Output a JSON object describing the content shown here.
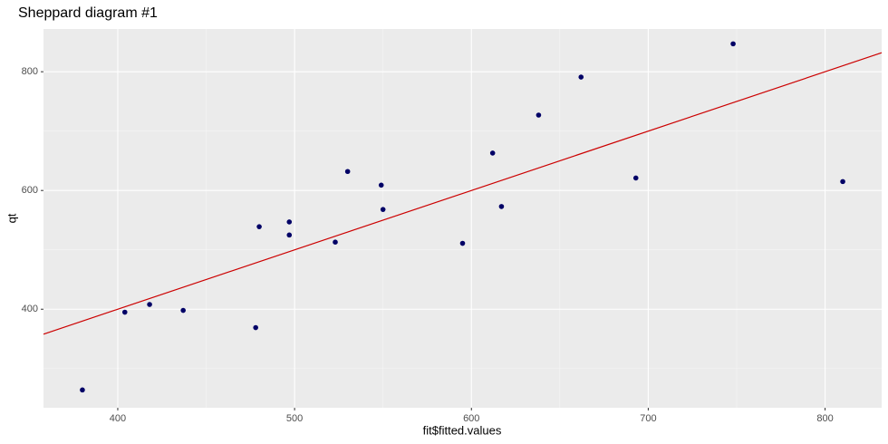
{
  "chart_data": {
    "type": "scatter",
    "title": "Sheppard diagram #1",
    "x_label": "fit$fitted.values",
    "y_label": "qt",
    "x": [
      380,
      404,
      418,
      437,
      478,
      480,
      497,
      497,
      523,
      530,
      549,
      550,
      595,
      612,
      617,
      638,
      662,
      693,
      748,
      810
    ],
    "values": [
      264,
      395,
      408,
      398,
      369,
      539,
      525,
      547,
      513,
      632,
      609,
      568,
      511,
      663,
      573,
      727,
      791,
      621,
      847,
      615
    ],
    "color": "#000066",
    "reference_line": {
      "intercept": 0,
      "slope": 1,
      "color": "#cc0000"
    },
    "xlim": [
      358,
      832
    ],
    "ylim": [
      234,
      872
    ],
    "xticks": [
      400,
      500,
      600,
      700,
      800
    ],
    "yticks": [
      400,
      600,
      800
    ],
    "grid": true
  }
}
